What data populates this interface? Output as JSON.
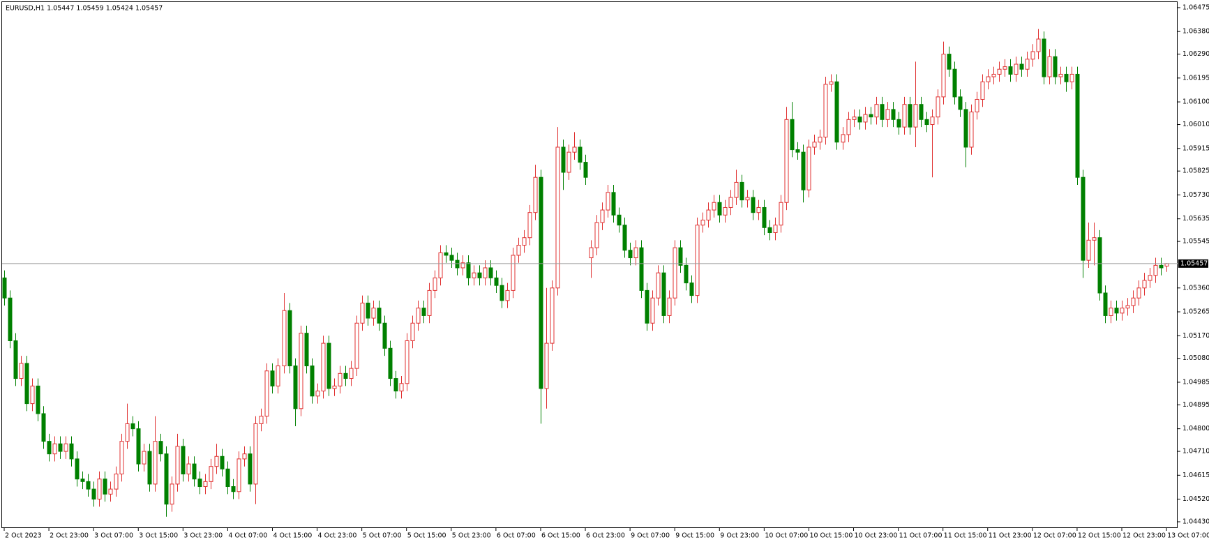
{
  "chart_data": {
    "type": "candlestick",
    "title": "EURUSD,H1  1.05447 1.05459 1.05424 1.05457",
    "up_color": "#e03030",
    "down_color": "#008000",
    "price_line_color": "#9a9a9a",
    "price_line": 1.05457,
    "ylim": [
      1.04405,
      1.06497
    ],
    "yticks": [
      1.06475,
      {
        "value": 1.0638,
        "label": "1.06380"
      },
      {
        "value": 1.0629,
        "label": "1.06290"
      },
      1.06195,
      {
        "value": 1.061,
        "label": "1.06100"
      },
      {
        "value": 1.0601,
        "label": "1.06010"
      },
      1.05915,
      1.05825,
      {
        "value": 1.0573,
        "label": "1.05730"
      },
      1.05635,
      1.05545,
      {
        "value": 1.0536,
        "label": "1.05360"
      },
      1.05265,
      {
        "value": 1.0517,
        "label": "1.05170"
      },
      {
        "value": 1.0508,
        "label": "1.05080"
      },
      1.04985,
      1.04895,
      {
        "value": 1.048,
        "label": "1.04800"
      },
      {
        "value": 1.0471,
        "label": "1.04710"
      },
      1.04615,
      {
        "value": 1.0452,
        "label": "1.04520"
      },
      {
        "value": 1.0443,
        "label": "1.04430"
      }
    ],
    "categories": [
      "2 Oct 2023",
      null,
      null,
      null,
      null,
      null,
      null,
      null,
      "2 Oct 23:00",
      null,
      null,
      null,
      null,
      null,
      null,
      null,
      "3 Oct 07:00",
      null,
      null,
      null,
      null,
      null,
      null,
      null,
      "3 Oct 15:00",
      null,
      null,
      null,
      null,
      null,
      null,
      null,
      "3 Oct 23:00",
      null,
      null,
      null,
      null,
      null,
      null,
      null,
      "4 Oct 07:00",
      null,
      null,
      null,
      null,
      null,
      null,
      null,
      "4 Oct 15:00",
      null,
      null,
      null,
      null,
      null,
      null,
      null,
      "4 Oct 23:00",
      null,
      null,
      null,
      null,
      null,
      null,
      null,
      "5 Oct 07:00",
      null,
      null,
      null,
      null,
      null,
      null,
      null,
      "5 Oct 15:00",
      null,
      null,
      null,
      null,
      null,
      null,
      null,
      "5 Oct 23:00",
      null,
      null,
      null,
      null,
      null,
      null,
      null,
      "6 Oct 07:00",
      null,
      null,
      null,
      null,
      null,
      null,
      null,
      "6 Oct 15:00",
      null,
      null,
      null,
      null,
      null,
      null,
      null,
      "6 Oct 23:00",
      null,
      null,
      null,
      null,
      null,
      null,
      null,
      "9 Oct 07:00",
      null,
      null,
      null,
      null,
      null,
      null,
      null,
      "9 Oct 15:00",
      null,
      null,
      null,
      null,
      null,
      null,
      null,
      "9 Oct 23:00",
      null,
      null,
      null,
      null,
      null,
      null,
      null,
      "10 Oct 07:00",
      null,
      null,
      null,
      null,
      null,
      null,
      null,
      "10 Oct 15:00",
      null,
      null,
      null,
      null,
      null,
      null,
      null,
      "10 Oct 23:00",
      null,
      null,
      null,
      null,
      null,
      null,
      null,
      "11 Oct 07:00",
      null,
      null,
      null,
      null,
      null,
      null,
      null,
      "11 Oct 15:00",
      null,
      null,
      null,
      null,
      null,
      null,
      null,
      "11 Oct 23:00",
      null,
      null,
      null,
      null,
      null,
      null,
      null,
      "12 Oct 07:00",
      null,
      null,
      null,
      null,
      null,
      null,
      null,
      "12 Oct 15:00",
      null,
      null,
      null,
      null,
      null,
      null,
      null,
      "12 Oct 23:00",
      null,
      null,
      null,
      null,
      null,
      null,
      null,
      "13 Oct 07:00"
    ],
    "open": [
      1.054,
      1.0532,
      1.0515,
      1.05,
      1.0506,
      1.049,
      1.0497,
      1.0486,
      1.0475,
      1.047,
      1.0474,
      1.0471,
      1.0474,
      1.0468,
      1.046,
      1.0459,
      1.0456,
      1.0452,
      1.046,
      1.0454,
      1.0456,
      1.0462,
      1.0475,
      1.0482,
      1.048,
      1.0466,
      1.0471,
      1.0458,
      1.0475,
      1.047,
      1.045,
      1.0458,
      1.0473,
      1.0462,
      1.0466,
      1.046,
      1.0457,
      1.0459,
      1.0465,
      1.0469,
      1.0464,
      1.0457,
      1.0455,
      1.0468,
      1.047,
      1.0458,
      1.0482,
      1.0485,
      1.0503,
      1.0497,
      1.0505,
      1.0527,
      1.0505,
      1.0488,
      1.0518,
      1.0505,
      1.0493,
      1.0495,
      1.0514,
      1.0496,
      1.0497,
      1.0502,
      1.05,
      1.0504,
      1.0522,
      1.053,
      1.0524,
      1.0528,
      1.0522,
      1.0512,
      1.05,
      1.0495,
      1.0498,
      1.0515,
      1.0522,
      1.0528,
      1.0525,
      1.0535,
      1.054,
      1.055,
      1.0549,
      1.0547,
      1.0544,
      1.0546,
      1.054,
      1.0542,
      1.054,
      1.0544,
      1.054,
      1.0537,
      1.0531,
      1.0535,
      1.0549,
      1.0553,
      1.0556,
      1.0566,
      1.058,
      1.0496,
      1.0514,
      1.0536,
      1.0592,
      1.0582,
      1.059,
      1.0592,
      1.0586,
      1.0548,
      1.0552,
      1.0562,
      1.0567,
      1.0574,
      1.0565,
      1.0561,
      1.0551,
      1.0548,
      1.0552,
      1.0535,
      1.0522,
      1.0532,
      1.0542,
      1.0525,
      1.0532,
      1.0552,
      1.0545,
      1.0538,
      1.0533,
      1.0561,
      1.0563,
      1.0567,
      1.057,
      1.0565,
      1.0568,
      1.0572,
      1.0578,
      1.0571,
      1.0572,
      1.0566,
      1.0568,
      1.056,
      1.0558,
      1.0561,
      1.057,
      1.0603,
      1.0591,
      1.059,
      1.0575,
      1.0592,
      1.0594,
      1.0596,
      1.0617,
      1.0618,
      1.0594,
      1.0597,
      1.0603,
      1.0604,
      1.0602,
      1.0605,
      1.0604,
      1.0609,
      1.0603,
      1.0607,
      1.0603,
      1.06,
      1.0609,
      1.06,
      1.0609,
      1.0603,
      1.0601,
      1.0604,
      1.0612,
      1.0629,
      1.0623,
      1.0612,
      1.0607,
      1.0592,
      1.0606,
      1.0611,
      1.0618,
      1.062,
      1.0621,
      1.0623,
      1.0624,
      1.0621,
      1.0625,
      1.0623,
      1.0627,
      1.063,
      1.0635,
      1.062,
      1.0628,
      1.062,
      1.0621,
      1.0618,
      1.0621,
      1.058,
      1.0547,
      1.0555,
      1.0556,
      1.0534,
      1.0525,
      1.0528,
      1.0526,
      1.0528,
      1.0529,
      1.0532,
      1.0536,
      1.0539,
      1.0541,
      1.0545,
      1.05447
    ],
    "high": [
      1.0543,
      1.0535,
      1.0518,
      1.0509,
      1.0509,
      1.05,
      1.05,
      1.0489,
      1.0478,
      1.0477,
      1.0477,
      1.0477,
      1.0477,
      1.0471,
      1.0463,
      1.0462,
      1.0459,
      1.0463,
      1.0463,
      1.0459,
      1.0465,
      1.0478,
      1.049,
      1.0485,
      1.0483,
      1.0474,
      1.0474,
      1.0485,
      1.0478,
      1.0473,
      1.0461,
      1.0478,
      1.0476,
      1.0469,
      1.0469,
      1.0463,
      1.0462,
      1.0468,
      1.0474,
      1.0472,
      1.0467,
      1.046,
      1.0471,
      1.0473,
      1.0473,
      1.0485,
      1.0488,
      1.0506,
      1.0506,
      1.0508,
      1.0534,
      1.053,
      1.0508,
      1.0521,
      1.0521,
      1.0508,
      1.0498,
      1.0517,
      1.0517,
      1.05,
      1.0505,
      1.0505,
      1.0507,
      1.0525,
      1.0533,
      1.0533,
      1.0531,
      1.0531,
      1.0525,
      1.0515,
      1.0503,
      1.0501,
      1.0518,
      1.0525,
      1.0531,
      1.0531,
      1.0538,
      1.0543,
      1.0553,
      1.0553,
      1.0552,
      1.055,
      1.0549,
      1.0549,
      1.0545,
      1.0545,
      1.0547,
      1.0547,
      1.0543,
      1.054,
      1.0538,
      1.0552,
      1.0556,
      1.0559,
      1.0569,
      1.0585,
      1.0583,
      1.0536,
      1.0539,
      1.06,
      1.0595,
      1.0593,
      1.0598,
      1.0595,
      1.0589,
      1.0555,
      1.0565,
      1.057,
      1.0577,
      1.0577,
      1.0568,
      1.0564,
      1.0554,
      1.0555,
      1.0555,
      1.0538,
      1.0535,
      1.0545,
      1.0545,
      1.0535,
      1.0555,
      1.0555,
      1.0548,
      1.0541,
      1.0564,
      1.0566,
      1.057,
      1.0573,
      1.0573,
      1.0571,
      1.0575,
      1.0583,
      1.0581,
      1.0575,
      1.0575,
      1.0571,
      1.0571,
      1.0563,
      1.0564,
      1.0573,
      1.0608,
      1.061,
      1.0594,
      1.0593,
      1.0595,
      1.0597,
      1.0599,
      1.062,
      1.0621,
      1.0621,
      1.06,
      1.0606,
      1.0607,
      1.0607,
      1.0608,
      1.0608,
      1.0612,
      1.0612,
      1.061,
      1.061,
      1.0606,
      1.0612,
      1.0612,
      1.0626,
      1.0612,
      1.0606,
      1.0607,
      1.0615,
      1.0634,
      1.0632,
      1.0626,
      1.0615,
      1.061,
      1.0609,
      1.0614,
      1.0621,
      1.0623,
      1.0624,
      1.0626,
      1.0627,
      1.0627,
      1.0628,
      1.0628,
      1.063,
      1.0633,
      1.0639,
      1.0638,
      1.0631,
      1.0631,
      1.0624,
      1.0624,
      1.0624,
      1.0624,
      1.0583,
      1.0562,
      1.0562,
      1.0559,
      1.0537,
      1.0531,
      1.0531,
      1.0531,
      1.0532,
      1.0535,
      1.0539,
      1.0542,
      1.0544,
      1.0548,
      1.0548,
      1.05459
    ],
    "low": [
      1.0529,
      1.0512,
      1.0497,
      1.0497,
      1.0487,
      1.0487,
      1.0483,
      1.0472,
      1.0467,
      1.0467,
      1.0468,
      1.0468,
      1.0465,
      1.0457,
      1.0456,
      1.0453,
      1.0449,
      1.0449,
      1.0451,
      1.0451,
      1.0453,
      1.0459,
      1.0472,
      1.0477,
      1.0463,
      1.0463,
      1.0455,
      1.0455,
      1.0467,
      1.0445,
      1.0447,
      1.0455,
      1.0459,
      1.0459,
      1.0457,
      1.0454,
      1.0454,
      1.0456,
      1.0462,
      1.0461,
      1.0454,
      1.0452,
      1.0452,
      1.0465,
      1.0455,
      1.045,
      1.0479,
      1.0482,
      1.0494,
      1.0494,
      1.0502,
      1.0502,
      1.0481,
      1.0485,
      1.0502,
      1.049,
      1.049,
      1.0492,
      1.0493,
      1.0493,
      1.0494,
      1.0497,
      1.0497,
      1.0501,
      1.0519,
      1.0521,
      1.0521,
      1.0519,
      1.0509,
      1.0497,
      1.0492,
      1.0492,
      1.0495,
      1.0512,
      1.0519,
      1.0522,
      1.0522,
      1.0532,
      1.0537,
      1.0546,
      1.0544,
      1.0541,
      1.0541,
      1.0537,
      1.0537,
      1.0537,
      1.0537,
      1.0537,
      1.0534,
      1.0528,
      1.0528,
      1.0532,
      1.0546,
      1.055,
      1.0553,
      1.0563,
      1.0482,
      1.0488,
      1.0511,
      1.0533,
      1.0575,
      1.0579,
      1.0587,
      1.0583,
      1.0577,
      1.054,
      1.0549,
      1.0559,
      1.0564,
      1.0562,
      1.0558,
      1.0548,
      1.0545,
      1.0545,
      1.0532,
      1.0519,
      1.0519,
      1.0529,
      1.0522,
      1.0522,
      1.0529,
      1.0542,
      1.0535,
      1.053,
      1.053,
      1.0558,
      1.056,
      1.0564,
      1.0562,
      1.0562,
      1.0565,
      1.0569,
      1.0568,
      1.0568,
      1.0563,
      1.0563,
      1.0557,
      1.0555,
      1.0555,
      1.0558,
      1.0567,
      1.0588,
      1.0587,
      1.057,
      1.0572,
      1.0589,
      1.0591,
      1.0593,
      1.0614,
      1.0591,
      1.0591,
      1.0594,
      1.06,
      1.0599,
      1.0599,
      1.0601,
      1.0601,
      1.06,
      1.06,
      1.06,
      1.0597,
      1.0597,
      1.0597,
      1.0592,
      1.06,
      1.0598,
      1.058,
      1.0601,
      1.0609,
      1.062,
      1.0609,
      1.0604,
      1.0584,
      1.0589,
      1.0603,
      1.0608,
      1.0615,
      1.0617,
      1.0618,
      1.062,
      1.0618,
      1.0618,
      1.062,
      1.062,
      1.0624,
      1.0627,
      1.0617,
      1.0617,
      1.0617,
      1.0617,
      1.0614,
      1.0615,
      1.0577,
      1.054,
      1.0544,
      1.0545,
      1.0531,
      1.0522,
      1.0522,
      1.0523,
      1.0523,
      1.0525,
      1.0526,
      1.0529,
      1.0533,
      1.0536,
      1.0538,
      1.0541,
      1.05424
    ],
    "close": [
      1.0532,
      1.0515,
      1.05,
      1.0506,
      1.049,
      1.0497,
      1.0486,
      1.0475,
      1.047,
      1.0474,
      1.0471,
      1.0474,
      1.0468,
      1.046,
      1.0459,
      1.0456,
      1.0452,
      1.046,
      1.0454,
      1.0456,
      1.0462,
      1.0475,
      1.0482,
      1.048,
      1.0466,
      1.0471,
      1.0458,
      1.0475,
      1.047,
      1.045,
      1.0458,
      1.0473,
      1.0462,
      1.0466,
      1.046,
      1.0457,
      1.0459,
      1.0465,
      1.0469,
      1.0464,
      1.0457,
      1.0455,
      1.0468,
      1.047,
      1.0458,
      1.0482,
      1.0485,
      1.0503,
      1.0497,
      1.0505,
      1.0527,
      1.0505,
      1.0488,
      1.0518,
      1.0505,
      1.0493,
      1.0495,
      1.0514,
      1.0496,
      1.0497,
      1.0502,
      1.05,
      1.0504,
      1.0522,
      1.053,
      1.0524,
      1.0528,
      1.0522,
      1.0512,
      1.05,
      1.0495,
      1.0498,
      1.0515,
      1.0522,
      1.0528,
      1.0525,
      1.0535,
      1.054,
      1.055,
      1.0549,
      1.0547,
      1.0544,
      1.0546,
      1.054,
      1.0542,
      1.054,
      1.0544,
      1.054,
      1.0537,
      1.0531,
      1.0535,
      1.0549,
      1.0553,
      1.0556,
      1.0566,
      1.058,
      1.0496,
      1.0514,
      1.0536,
      1.0592,
      1.0582,
      1.059,
      1.0592,
      1.0586,
      1.058,
      1.0552,
      1.0562,
      1.0567,
      1.0574,
      1.0565,
      1.0561,
      1.0551,
      1.0548,
      1.0552,
      1.0535,
      1.0522,
      1.0532,
      1.0542,
      1.0525,
      1.0532,
      1.0552,
      1.0545,
      1.0538,
      1.0533,
      1.0561,
      1.0563,
      1.0567,
      1.057,
      1.0565,
      1.0568,
      1.0572,
      1.0578,
      1.0571,
      1.0572,
      1.0566,
      1.0568,
      1.056,
      1.0558,
      1.0561,
      1.057,
      1.0603,
      1.0591,
      1.059,
      1.0575,
      1.0592,
      1.0594,
      1.0596,
      1.0617,
      1.0618,
      1.0594,
      1.0597,
      1.0603,
      1.0604,
      1.0602,
      1.0605,
      1.0604,
      1.0609,
      1.0603,
      1.0607,
      1.0603,
      1.06,
      1.0609,
      1.06,
      1.0609,
      1.0603,
      1.0601,
      1.0604,
      1.0612,
      1.0629,
      1.0623,
      1.0612,
      1.0607,
      1.0592,
      1.0606,
      1.0611,
      1.0618,
      1.062,
      1.0621,
      1.0623,
      1.0624,
      1.0621,
      1.0625,
      1.0623,
      1.0627,
      1.063,
      1.0635,
      1.062,
      1.0628,
      1.062,
      1.0621,
      1.0618,
      1.0621,
      1.058,
      1.0547,
      1.0555,
      1.0556,
      1.0534,
      1.0525,
      1.0528,
      1.0526,
      1.0528,
      1.0529,
      1.0532,
      1.0536,
      1.0539,
      1.0541,
      1.0545,
      1.0544,
      1.05457
    ]
  }
}
